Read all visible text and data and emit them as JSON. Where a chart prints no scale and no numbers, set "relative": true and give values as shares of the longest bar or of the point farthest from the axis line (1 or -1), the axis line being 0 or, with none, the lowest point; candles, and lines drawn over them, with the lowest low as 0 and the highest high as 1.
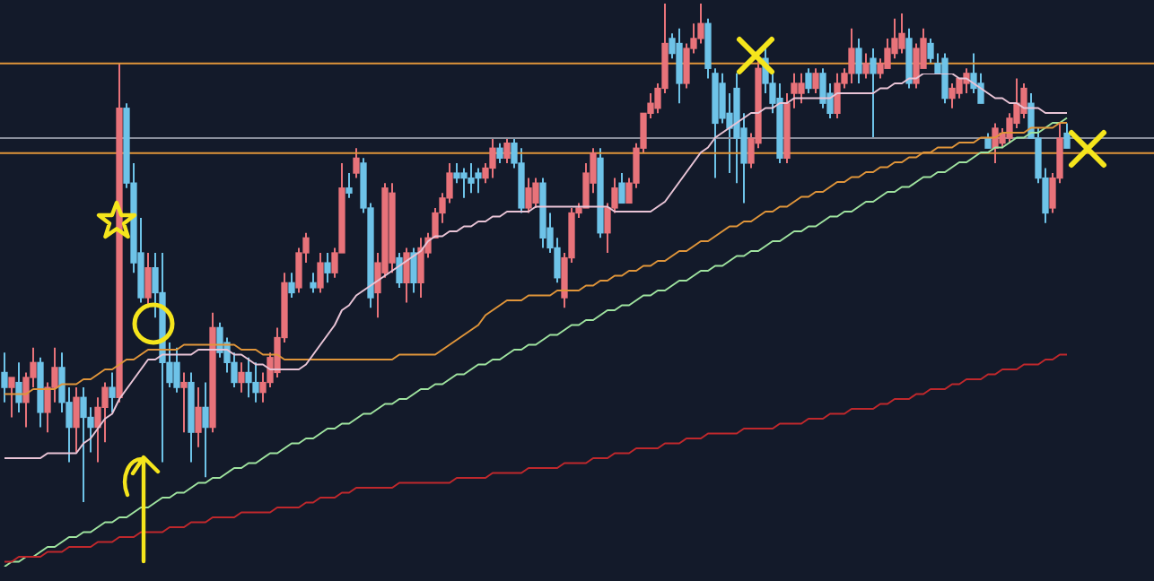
{
  "chart_data": [
    {
      "type": "candlestick",
      "relative": true,
      "categories": [
        null,
        null,
        null,
        null,
        null,
        null,
        null,
        null,
        null,
        null,
        null,
        null,
        null,
        null,
        null,
        null,
        null,
        null,
        null,
        null,
        null,
        null,
        null,
        null,
        null,
        null,
        null,
        null,
        null,
        null,
        null,
        null,
        null,
        null,
        null,
        null,
        null,
        null,
        null,
        null,
        null,
        null,
        null,
        null,
        null,
        null,
        null,
        null,
        null,
        null,
        null,
        null,
        null,
        null,
        null,
        null,
        null,
        null,
        null,
        null,
        null,
        null,
        null,
        null,
        null,
        null,
        null,
        null,
        null,
        null,
        null,
        null,
        null,
        null,
        null,
        null,
        null,
        null,
        null,
        null,
        null,
        null,
        null,
        null,
        null,
        null,
        null,
        null,
        null,
        null,
        null,
        null,
        null,
        null,
        null,
        null,
        null,
        null,
        null,
        null,
        null,
        null,
        null,
        null,
        null,
        null,
        null,
        null,
        null,
        null,
        null,
        null,
        null,
        null,
        null,
        null,
        null,
        null,
        null,
        null,
        null,
        null,
        null,
        null,
        null,
        null,
        null,
        null,
        null,
        null,
        null,
        null,
        null,
        null,
        null,
        null,
        null,
        null,
        null,
        null,
        null,
        null,
        null,
        null,
        null,
        null,
        null,
        null,
        null
      ],
      "colors": [
        "#6ec3e8",
        "#e8737a",
        "#6ec3e8",
        "#e8737a",
        "#e8737a",
        "#6ec3e8",
        "#e8737a",
        "#e8737a",
        "#6ec3e8",
        "#6ec3e8",
        "#e8737a",
        "#6ec3e8",
        "#6ec3e8",
        "#e8737a",
        "#e8737a",
        "#6ec3e8",
        "#e8737a",
        "#6ec3e8",
        "#6ec3e8",
        "#6ec3e8",
        "#e8737a",
        "#6ec3e8",
        "#6ec3e8",
        "#6ec3e8",
        "#6ec3e8",
        "#e8737a",
        "#6ec3e8",
        "#e8737a",
        "#6ec3e8",
        "#e8737a",
        "#6ec3e8",
        "#6ec3e8",
        "#6ec3e8",
        "#e8737a",
        "#6ec3e8",
        "#6ec3e8",
        "#e8737a",
        "#e8737a",
        "#e8737a",
        "#e8737a",
        "#6ec3e8",
        "#e8737a",
        "#e8737a",
        "#6ec3e8",
        "#e8737a",
        "#6ec3e8",
        "#e8737a",
        "#e8737a",
        "#6ec3e8",
        "#e8737a",
        "#6ec3e8",
        "#6ec3e8",
        "#e8737a",
        "#e8737a",
        "#e8737a",
        "#6ec3e8",
        "#e8737a",
        "#6ec3e8",
        "#e8737a",
        "#e8737a",
        "#e8737a",
        "#e8737a",
        "#e8737a",
        "#6ec3e8",
        "#6ec3e8",
        "#6ec3e8",
        "#6ec3e8",
        "#e8737a",
        "#e8737a",
        "#6ec3e8",
        "#e8737a",
        "#6ec3e8",
        "#6ec3e8",
        "#e8737a",
        "#e8737a",
        "#6ec3e8",
        "#6ec3e8",
        "#6ec3e8",
        "#e8737a",
        "#e8737a",
        "#e8737a",
        "#e8737a",
        "#e8737a",
        "#6ec3e8",
        "#e8737a",
        "#e8737a",
        "#6ec3e8",
        "#e8737a",
        "#e8737a",
        "#e8737a",
        "#e8737a",
        "#e8737a",
        "#e8737a",
        "#6ec3e8",
        "#6ec3e8",
        "#e8737a",
        "#e8737a",
        "#e8737a",
        "#6ec3e8",
        "#6ec3e8",
        "#6ec3e8",
        "#6ec3e8",
        "#6ec3e8",
        "#6ec3e8",
        "#e8737a",
        "#e8737a",
        "#6ec3e8",
        "#6ec3e8",
        "#6ec3e8",
        "#e8737a",
        "#e8737a",
        "#e8737a",
        "#6ec3e8",
        "#e8737a",
        "#6ec3e8",
        "#6ec3e8",
        "#e8737a",
        "#e8737a",
        "#e8737a",
        "#6ec3e8",
        "#e8737a",
        "#6ec3e8",
        "#e8737a",
        "#e8737a",
        "#e8737a",
        "#e8737a",
        "#6ec3e8",
        "#e8737a",
        "#e8737a",
        "#6ec3e8",
        "#6ec3e8",
        "#6ec3e8",
        "#e8737a",
        "#e8737a",
        "#e8737a",
        "#6ec3e8",
        "#6ec3e8",
        "#6ec3e8",
        "#e8737a",
        "#e8737a",
        "#e8737a",
        "#e8737a",
        "#e8737a",
        "#6ec3e8",
        "#6ec3e8",
        "#6ec3e8",
        "#e8737a",
        "#e8737a",
        "#6ec3e8"
      ],
      "ohlc": [
        [
          0.26,
          0.3,
          0.2,
          0.23
        ],
        [
          0.23,
          0.25,
          0.17,
          0.25
        ],
        [
          0.24,
          0.28,
          0.18,
          0.2
        ],
        [
          0.2,
          0.26,
          0.15,
          0.25
        ],
        [
          0.25,
          0.31,
          0.23,
          0.28
        ],
        [
          0.28,
          0.29,
          0.15,
          0.18
        ],
        [
          0.18,
          0.24,
          0.14,
          0.23
        ],
        [
          0.23,
          0.31,
          0.2,
          0.27
        ],
        [
          0.27,
          0.3,
          0.18,
          0.2
        ],
        [
          0.2,
          0.23,
          0.08,
          0.15
        ],
        [
          0.15,
          0.23,
          0.1,
          0.21
        ],
        [
          0.21,
          0.23,
          0,
          0.17
        ],
        [
          0.17,
          0.19,
          0.1,
          0.15
        ],
        [
          0.15,
          0.21,
          0.08,
          0.19
        ],
        [
          0.19,
          0.24,
          0.12,
          0.23
        ],
        [
          0.23,
          0.26,
          0.18,
          0.21
        ],
        [
          0.21,
          0.88,
          0.2,
          0.79
        ],
        [
          0.79,
          0.8,
          0.63,
          0.64
        ],
        [
          0.64,
          0.68,
          0.46,
          0.48
        ],
        [
          0.5,
          0.57,
          0.4,
          0.41
        ],
        [
          0.41,
          0.5,
          0.39,
          0.47
        ],
        [
          0.47,
          0.5,
          0.37,
          0.42
        ],
        [
          0.42,
          0.5,
          0.08,
          0.28
        ],
        [
          0.28,
          0.32,
          0.23,
          0.24
        ],
        [
          0.28,
          0.31,
          0.22,
          0.23
        ],
        [
          0.23,
          0.26,
          0.14,
          0.24
        ],
        [
          0.24,
          0.26,
          0.08,
          0.14
        ],
        [
          0.14,
          0.23,
          0.11,
          0.19
        ],
        [
          0.19,
          0.24,
          0.05,
          0.15
        ],
        [
          0.15,
          0.38,
          0.14,
          0.35
        ],
        [
          0.35,
          0.36,
          0.29,
          0.3
        ],
        [
          0.32,
          0.33,
          0.26,
          0.28
        ],
        [
          0.28,
          0.3,
          0.23,
          0.24
        ],
        [
          0.24,
          0.28,
          0.22,
          0.26
        ],
        [
          0.26,
          0.29,
          0.21,
          0.24
        ],
        [
          0.24,
          0.28,
          0.2,
          0.22
        ],
        [
          0.22,
          0.26,
          0.2,
          0.24
        ],
        [
          0.24,
          0.3,
          0.23,
          0.29
        ],
        [
          0.26,
          0.35,
          0.25,
          0.33
        ],
        [
          0.33,
          0.46,
          0.32,
          0.44
        ],
        [
          0.44,
          0.46,
          0.41,
          0.42
        ],
        [
          0.43,
          0.51,
          0.42,
          0.5
        ],
        [
          0.5,
          0.54,
          0.48,
          0.53
        ],
        [
          0.44,
          0.46,
          0.42,
          0.43
        ],
        [
          0.43,
          0.5,
          0.42,
          0.48
        ],
        [
          0.48,
          0.5,
          0.44,
          0.46
        ],
        [
          0.46,
          0.51,
          0.45,
          0.5
        ],
        [
          0.5,
          0.68,
          0.5,
          0.63
        ],
        [
          0.63,
          0.66,
          0.61,
          0.62
        ],
        [
          0.66,
          0.71,
          0.65,
          0.69
        ],
        [
          0.68,
          0.69,
          0.58,
          0.59
        ],
        [
          0.59,
          0.6,
          0.39,
          0.41
        ],
        [
          0.42,
          0.5,
          0.37,
          0.48
        ],
        [
          0.46,
          0.64,
          0.45,
          0.63
        ],
        [
          0.48,
          0.64,
          0.46,
          0.62
        ],
        [
          0.49,
          0.5,
          0.43,
          0.44
        ],
        [
          0.44,
          0.51,
          0.4,
          0.5
        ],
        [
          0.5,
          0.51,
          0.42,
          0.44
        ],
        [
          0.44,
          0.53,
          0.41,
          0.51
        ],
        [
          0.5,
          0.54,
          0.49,
          0.53
        ],
        [
          0.53,
          0.59,
          0.53,
          0.58
        ],
        [
          0.58,
          0.62,
          0.56,
          0.61
        ],
        [
          0.61,
          0.68,
          0.6,
          0.66
        ],
        [
          0.66,
          0.68,
          0.64,
          0.65
        ],
        [
          0.66,
          0.67,
          0.61,
          0.65
        ],
        [
          0.65,
          0.68,
          0.62,
          0.64
        ],
        [
          0.66,
          0.67,
          0.62,
          0.65
        ],
        [
          0.65,
          0.68,
          0.64,
          0.67
        ],
        [
          0.67,
          0.73,
          0.65,
          0.71
        ],
        [
          0.71,
          0.72,
          0.68,
          0.69
        ],
        [
          0.69,
          0.73,
          0.68,
          0.72
        ],
        [
          0.72,
          0.73,
          0.67,
          0.68
        ],
        [
          0.68,
          0.71,
          0.58,
          0.59
        ],
        [
          0.59,
          0.65,
          0.58,
          0.63
        ],
        [
          0.6,
          0.65,
          0.59,
          0.64
        ],
        [
          0.64,
          0.65,
          0.51,
          0.53
        ],
        [
          0.55,
          0.58,
          0.5,
          0.51
        ],
        [
          0.51,
          0.53,
          0.44,
          0.45
        ],
        [
          0.41,
          0.5,
          0.39,
          0.49
        ],
        [
          0.49,
          0.59,
          0.48,
          0.58
        ],
        [
          0.58,
          0.6,
          0.57,
          0.59
        ],
        [
          0.59,
          0.68,
          0.59,
          0.66
        ],
        [
          0.64,
          0.71,
          0.62,
          0.7
        ],
        [
          0.69,
          0.71,
          0.53,
          0.54
        ],
        [
          0.54,
          0.6,
          0.5,
          0.59
        ],
        [
          0.59,
          0.65,
          0.58,
          0.63
        ],
        [
          0.64,
          0.66,
          0.6,
          0.6
        ],
        [
          0.6,
          0.65,
          0.6,
          0.64
        ],
        [
          0.64,
          0.72,
          0.63,
          0.71
        ],
        [
          0.71,
          0.78,
          0.7,
          0.78
        ],
        [
          0.78,
          0.82,
          0.77,
          0.8
        ],
        [
          0.79,
          0.84,
          0.78,
          0.83
        ],
        [
          0.83,
          1,
          0.82,
          0.92
        ],
        [
          0.93,
          0.94,
          0.89,
          0.9
        ],
        [
          0.92,
          0.95,
          0.8,
          0.84
        ],
        [
          0.84,
          0.92,
          0.83,
          0.91
        ],
        [
          0.91,
          0.96,
          0.9,
          0.93
        ],
        [
          0.93,
          1,
          0.92,
          0.96
        ],
        [
          0.96,
          0.97,
          0.85,
          0.87
        ],
        [
          0.86,
          0.87,
          0.65,
          0.76
        ],
        [
          0.84,
          0.86,
          0.76,
          0.77
        ],
        [
          0.78,
          0.82,
          0.66,
          0.75
        ],
        [
          0.83,
          0.86,
          0.64,
          0.73
        ],
        [
          0.75,
          0.78,
          0.6,
          0.68
        ],
        [
          0.68,
          0.74,
          0.67,
          0.73
        ],
        [
          0.72,
          0.89,
          0.71,
          0.87
        ],
        [
          0.89,
          0.92,
          0.82,
          0.84
        ],
        [
          0.84,
          0.86,
          0.78,
          0.8
        ],
        [
          0.81,
          0.84,
          0.68,
          0.69
        ],
        [
          0.69,
          0.82,
          0.68,
          0.8
        ],
        [
          0.82,
          0.86,
          0.79,
          0.84
        ],
        [
          0.82,
          0.86,
          0.8,
          0.84
        ],
        [
          0.86,
          0.87,
          0.82,
          0.83
        ],
        [
          0.83,
          0.87,
          0.82,
          0.86
        ],
        [
          0.86,
          0.87,
          0.79,
          0.8
        ],
        [
          0.82,
          0.84,
          0.77,
          0.78
        ],
        [
          0.78,
          0.86,
          0.77,
          0.84
        ],
        [
          0.84,
          0.87,
          0.83,
          0.86
        ],
        [
          0.86,
          0.95,
          0.84,
          0.91
        ],
        [
          0.91,
          0.93,
          0.84,
          0.86
        ],
        [
          0.86,
          0.9,
          0.85,
          0.88
        ],
        [
          0.89,
          0.91,
          0.73,
          0.86
        ],
        [
          0.86,
          0.89,
          0.85,
          0.88
        ],
        [
          0.87,
          0.93,
          0.87,
          0.91
        ],
        [
          0.9,
          0.97,
          0.89,
          0.93
        ],
        [
          0.91,
          0.98,
          0.9,
          0.94
        ],
        [
          0.93,
          0.95,
          0.83,
          0.84
        ],
        [
          0.84,
          0.92,
          0.83,
          0.91
        ],
        [
          0.87,
          0.95,
          0.87,
          0.93
        ],
        [
          0.92,
          0.93,
          0.88,
          0.89
        ],
        [
          0.88,
          0.9,
          0.86,
          0.86
        ],
        [
          0.89,
          0.9,
          0.8,
          0.81
        ],
        [
          0.81,
          0.84,
          0.79,
          0.83
        ],
        [
          0.82,
          0.85,
          0.81,
          0.85
        ],
        [
          0.84,
          0.87,
          0.82,
          0.86
        ],
        [
          0.86,
          0.9,
          0.82,
          0.83
        ],
        [
          0.84,
          0.86,
          0.8,
          0.8
        ],
        [
          0.73,
          0.74,
          0.71,
          0.71
        ],
        [
          0.71,
          0.76,
          0.68,
          0.75
        ],
        [
          0.72,
          0.75,
          0.71,
          0.74
        ],
        [
          0.73,
          0.78,
          0.72,
          0.77
        ],
        [
          0.76,
          0.85,
          0.75,
          0.8
        ],
        [
          0.78,
          0.84,
          0.77,
          0.83
        ],
        [
          0.8,
          0.82,
          0.73,
          0.73
        ],
        [
          0.73,
          0.75,
          0.64,
          0.65
        ],
        [
          0.65,
          0.67,
          0.56,
          0.58
        ],
        [
          0.59,
          0.66,
          0.58,
          0.65
        ],
        [
          0.65,
          0.76,
          0.64,
          0.73
        ],
        [
          0.74,
          0.76,
          0.71,
          0.71
        ]
      ],
      "ref_lines": [
        {
          "axis": "y",
          "value": 0.88,
          "color": "#e0953a"
        },
        {
          "axis": "y",
          "value": 0.73,
          "color": "#8a8f9c"
        },
        {
          "axis": "y",
          "value": 0.7,
          "color": "#e0953a"
        }
      ]
    },
    {
      "type": "line",
      "relative": true,
      "categories": [
        null,
        null,
        null,
        null,
        null,
        null,
        null,
        null,
        null,
        null,
        null,
        null,
        null,
        null,
        null,
        null,
        null,
        null,
        null,
        null,
        null,
        null,
        null,
        null,
        null,
        null,
        null,
        null,
        null,
        null,
        null,
        null,
        null,
        null,
        null,
        null,
        null,
        null,
        null,
        null,
        null,
        null,
        null,
        null,
        null,
        null,
        null,
        null,
        null,
        null,
        null,
        null,
        null,
        null,
        null,
        null,
        null,
        null,
        null,
        null,
        null,
        null,
        null,
        null,
        null,
        null,
        null,
        null,
        null,
        null,
        null,
        null,
        null,
        null,
        null,
        null,
        null,
        null,
        null,
        null,
        null,
        null,
        null,
        null,
        null,
        null,
        null,
        null,
        null,
        null,
        null,
        null,
        null,
        null,
        null,
        null,
        null,
        null,
        null,
        null,
        null,
        null,
        null,
        null,
        null,
        null,
        null,
        null,
        null,
        null,
        null,
        null,
        null,
        null,
        null,
        null,
        null,
        null,
        null,
        null,
        null,
        null,
        null,
        null,
        null,
        null,
        null,
        null,
        null,
        null,
        null,
        null,
        null,
        null,
        null,
        null,
        null,
        null,
        null,
        null,
        null,
        null,
        null,
        null,
        null,
        null,
        null,
        null,
        null
      ],
      "series": [
        {
          "color": "#e9c4d6",
          "values": [
            0.22,
            0.22,
            0.22,
            0.22,
            0.22,
            0.22,
            0.23,
            0.23,
            0.23,
            0.23,
            0.23,
            0.25,
            0.26,
            0.28,
            0.3,
            0.31,
            0.34,
            0.36,
            0.38,
            0.4,
            0.42,
            0.42,
            0.43,
            0.43,
            0.43,
            0.43,
            0.43,
            0.44,
            0.44,
            0.44,
            0.44,
            0.44,
            0.43,
            0.43,
            0.42,
            0.41,
            0.41,
            0.4,
            0.4,
            0.4,
            0.4,
            0.4,
            0.41,
            0.43,
            0.45,
            0.47,
            0.49,
            0.52,
            0.53,
            0.55,
            0.56,
            0.57,
            0.58,
            0.59,
            0.6,
            0.61,
            0.62,
            0.63,
            0.64,
            0.66,
            0.67,
            0.67,
            0.68,
            0.68,
            0.69,
            0.69,
            0.7,
            0.7,
            0.71,
            0.71,
            0.72,
            0.72,
            0.72,
            0.72,
            0.73,
            0.73,
            0.73,
            0.73,
            0.73,
            0.73,
            0.73,
            0.73,
            0.73,
            0.73,
            0.73,
            0.72,
            0.72,
            0.72,
            0.72,
            0.72,
            0.72,
            0.73,
            0.74,
            0.76,
            0.78,
            0.8,
            0.82,
            0.84,
            0.85,
            0.87,
            0.88,
            0.89,
            0.9,
            0.91,
            0.92,
            0.92,
            0.93,
            0.93,
            0.94,
            0.94,
            0.95,
            0.95,
            0.95,
            0.95,
            0.95,
            0.95,
            0.96,
            0.96,
            0.96,
            0.96,
            0.96,
            0.96,
            0.97,
            0.97,
            0.98,
            0.98,
            0.99,
            0.99,
            1,
            1,
            1,
            1,
            1,
            0.99,
            0.99,
            0.98,
            0.97,
            0.96,
            0.95,
            0.95,
            0.94,
            0.94,
            0.93,
            0.93,
            0.93,
            0.92,
            0.92,
            0.92,
            0.92
          ]
        },
        {
          "color": "#e0953a",
          "values": [
            0.35,
            0.35,
            0.35,
            0.35,
            0.36,
            0.36,
            0.36,
            0.36,
            0.37,
            0.37,
            0.37,
            0.38,
            0.38,
            0.39,
            0.4,
            0.4,
            0.41,
            0.42,
            0.42,
            0.43,
            0.44,
            0.44,
            0.44,
            0.44,
            0.44,
            0.45,
            0.45,
            0.45,
            0.45,
            0.45,
            0.45,
            0.45,
            0.45,
            0.44,
            0.44,
            0.44,
            0.43,
            0.43,
            0.43,
            0.42,
            0.42,
            0.42,
            0.42,
            0.42,
            0.42,
            0.42,
            0.42,
            0.42,
            0.42,
            0.42,
            0.42,
            0.42,
            0.42,
            0.42,
            0.42,
            0.43,
            0.43,
            0.43,
            0.43,
            0.43,
            0.43,
            0.44,
            0.45,
            0.46,
            0.47,
            0.48,
            0.49,
            0.51,
            0.52,
            0.53,
            0.54,
            0.54,
            0.54,
            0.55,
            0.55,
            0.55,
            0.55,
            0.56,
            0.56,
            0.56,
            0.56,
            0.57,
            0.57,
            0.58,
            0.58,
            0.59,
            0.59,
            0.6,
            0.6,
            0.61,
            0.61,
            0.62,
            0.62,
            0.63,
            0.64,
            0.64,
            0.65,
            0.66,
            0.66,
            0.67,
            0.68,
            0.69,
            0.69,
            0.7,
            0.7,
            0.71,
            0.72,
            0.72,
            0.73,
            0.73,
            0.74,
            0.75,
            0.75,
            0.76,
            0.76,
            0.77,
            0.78,
            0.78,
            0.79,
            0.79,
            0.8,
            0.8,
            0.81,
            0.81,
            0.82,
            0.82,
            0.83,
            0.83,
            0.84,
            0.84,
            0.85,
            0.85,
            0.85,
            0.86,
            0.86,
            0.86,
            0.87,
            0.87,
            0.87,
            0.88,
            0.88,
            0.88,
            0.88,
            0.89,
            0.89,
            0.89,
            0.89,
            0.9,
            0.9
          ]
        },
        {
          "color": "#c0282c",
          "values": [
            0.01,
            0.01,
            0.02,
            0.02,
            0.02,
            0.02,
            0.03,
            0.03,
            0.03,
            0.04,
            0.04,
            0.04,
            0.04,
            0.05,
            0.05,
            0.05,
            0.06,
            0.06,
            0.06,
            0.07,
            0.07,
            0.07,
            0.07,
            0.08,
            0.08,
            0.08,
            0.09,
            0.09,
            0.09,
            0.1,
            0.1,
            0.1,
            0.1,
            0.11,
            0.11,
            0.11,
            0.11,
            0.11,
            0.12,
            0.12,
            0.12,
            0.12,
            0.13,
            0.13,
            0.14,
            0.14,
            0.14,
            0.15,
            0.15,
            0.16,
            0.16,
            0.16,
            0.16,
            0.16,
            0.16,
            0.17,
            0.17,
            0.17,
            0.17,
            0.17,
            0.17,
            0.17,
            0.17,
            0.18,
            0.18,
            0.18,
            0.18,
            0.18,
            0.19,
            0.19,
            0.19,
            0.19,
            0.19,
            0.2,
            0.2,
            0.2,
            0.2,
            0.2,
            0.21,
            0.21,
            0.21,
            0.21,
            0.22,
            0.22,
            0.22,
            0.23,
            0.23,
            0.23,
            0.24,
            0.24,
            0.24,
            0.24,
            0.25,
            0.25,
            0.25,
            0.26,
            0.26,
            0.26,
            0.27,
            0.27,
            0.27,
            0.27,
            0.27,
            0.28,
            0.28,
            0.28,
            0.28,
            0.28,
            0.29,
            0.29,
            0.29,
            0.29,
            0.3,
            0.3,
            0.3,
            0.31,
            0.31,
            0.31,
            0.32,
            0.32,
            0.32,
            0.32,
            0.33,
            0.33,
            0.34,
            0.34,
            0.34,
            0.35,
            0.35,
            0.36,
            0.36,
            0.36,
            0.37,
            0.37,
            0.38,
            0.38,
            0.38,
            0.39,
            0.39,
            0.4,
            0.4,
            0.4,
            0.41,
            0.41,
            0.41,
            0.42,
            0.42,
            0.43,
            0.43
          ]
        },
        {
          "color": "#9fe39f",
          "values": [
            0,
            0.01,
            0.01,
            0.02,
            0.02,
            0.03,
            0.04,
            0.04,
            0.05,
            0.06,
            0.06,
            0.07,
            0.07,
            0.08,
            0.09,
            0.09,
            0.1,
            0.1,
            0.11,
            0.12,
            0.12,
            0.13,
            0.14,
            0.14,
            0.15,
            0.15,
            0.16,
            0.17,
            0.17,
            0.18,
            0.18,
            0.19,
            0.2,
            0.2,
            0.21,
            0.21,
            0.22,
            0.23,
            0.23,
            0.24,
            0.25,
            0.25,
            0.26,
            0.26,
            0.27,
            0.28,
            0.28,
            0.29,
            0.29,
            0.3,
            0.31,
            0.31,
            0.32,
            0.33,
            0.33,
            0.34,
            0.34,
            0.35,
            0.36,
            0.36,
            0.37,
            0.37,
            0.38,
            0.39,
            0.39,
            0.4,
            0.41,
            0.41,
            0.42,
            0.42,
            0.43,
            0.44,
            0.44,
            0.45,
            0.45,
            0.46,
            0.47,
            0.47,
            0.48,
            0.49,
            0.49,
            0.5,
            0.5,
            0.51,
            0.52,
            0.52,
            0.53,
            0.53,
            0.54,
            0.55,
            0.55,
            0.56,
            0.56,
            0.57,
            0.58,
            0.58,
            0.59,
            0.6,
            0.6,
            0.61,
            0.61,
            0.62,
            0.63,
            0.63,
            0.64,
            0.64,
            0.65,
            0.66,
            0.66,
            0.67,
            0.68,
            0.68,
            0.69,
            0.69,
            0.7,
            0.71,
            0.71,
            0.72,
            0.72,
            0.73,
            0.74,
            0.74,
            0.75,
            0.76,
            0.76,
            0.77,
            0.77,
            0.78,
            0.79,
            0.79,
            0.8,
            0.8,
            0.81,
            0.82,
            0.82,
            0.83,
            0.84,
            0.84,
            0.85,
            0.85,
            0.86,
            0.87,
            0.87,
            0.88,
            0.88,
            0.89,
            0.9,
            0.9,
            0.91
          ]
        }
      ]
    }
  ]
}
